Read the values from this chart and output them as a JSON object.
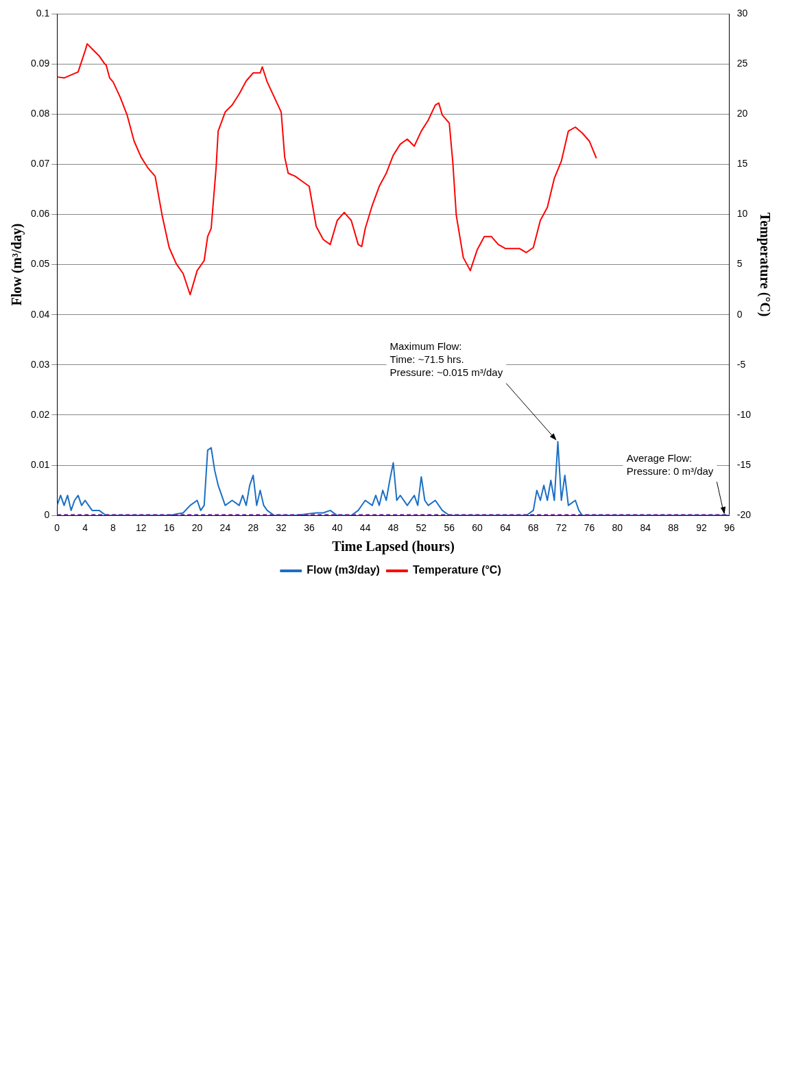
{
  "chart_data": {
    "type": "line",
    "xlabel": "Time Lapsed (hours)",
    "ylabel": "Flow (m³/day)",
    "y2label": "Temperature (°C)",
    "xlim": [
      0,
      96
    ],
    "xticks": [
      0,
      4,
      8,
      12,
      16,
      20,
      24,
      28,
      32,
      36,
      40,
      44,
      48,
      52,
      56,
      60,
      64,
      68,
      72,
      76,
      80,
      84,
      88,
      92,
      96
    ],
    "ylim": [
      0,
      0.1
    ],
    "yticks": [
      0,
      0.01,
      0.02,
      0.03,
      0.04,
      0.05,
      0.06,
      0.07,
      0.08,
      0.09,
      0.1
    ],
    "y2lim": [
      -20,
      30
    ],
    "y2ticks": [
      -20,
      -15,
      -10,
      -5,
      0,
      5,
      10,
      15,
      20,
      25,
      30
    ],
    "grid": "y",
    "legend": "bottom",
    "series": [
      {
        "name": "Flow (m3/day)",
        "axis": "y",
        "color": "#1a6fc4",
        "x": [
          0,
          0.5,
          1,
          1.5,
          2,
          2.5,
          3,
          3.5,
          4,
          4.5,
          5,
          6,
          7,
          8,
          10,
          12,
          14,
          16,
          18,
          19,
          20,
          20.5,
          21,
          21.5,
          22,
          22.5,
          23,
          23.5,
          24,
          25,
          26,
          26.5,
          27,
          27.5,
          28,
          28.5,
          29,
          29.5,
          30,
          31,
          34,
          37,
          38,
          39,
          40,
          42,
          43,
          44,
          45,
          45.5,
          46,
          46.5,
          47,
          47.5,
          48,
          48.5,
          49,
          50,
          51,
          51.5,
          52,
          52.5,
          53,
          54,
          55,
          56,
          60,
          64,
          67,
          68,
          68.5,
          69,
          69.5,
          70,
          70.5,
          71,
          71.5,
          72,
          72.5,
          73,
          74,
          74.5,
          75,
          80,
          88,
          96
        ],
        "values": [
          0.002,
          0.004,
          0.002,
          0.004,
          0.001,
          0.003,
          0.004,
          0.002,
          0.003,
          0.002,
          0.001,
          0.001,
          0,
          0,
          0,
          0,
          0,
          0,
          0.0005,
          0.002,
          0.003,
          0.001,
          0.002,
          0.013,
          0.0135,
          0.009,
          0.006,
          0.004,
          0.002,
          0.003,
          0.002,
          0.004,
          0.002,
          0.006,
          0.008,
          0.002,
          0.005,
          0.002,
          0.001,
          0,
          0,
          0.0005,
          0.0005,
          0.001,
          0,
          0,
          0.001,
          0.003,
          0.002,
          0.004,
          0.002,
          0.005,
          0.003,
          0.007,
          0.0105,
          0.003,
          0.004,
          0.002,
          0.004,
          0.002,
          0.0077,
          0.003,
          0.002,
          0.003,
          0.001,
          0,
          0,
          0,
          0,
          0.001,
          0.005,
          0.003,
          0.006,
          0.003,
          0.007,
          0.003,
          0.0147,
          0.003,
          0.008,
          0.002,
          0.003,
          0.001,
          0,
          0,
          0,
          0
        ]
      },
      {
        "name": "Temperature (°C)",
        "axis": "y2",
        "color": "#ff0000",
        "x": [
          0,
          1,
          3,
          4,
          4.3,
          5,
          6,
          6.8,
          7,
          7.5,
          8,
          9,
          10,
          11,
          12,
          13,
          14,
          15,
          16,
          17,
          18,
          19,
          20,
          21,
          21.5,
          22,
          22.7,
          23,
          24,
          25,
          26,
          27,
          28,
          29,
          29.3,
          30,
          31,
          32,
          32.5,
          33,
          34,
          35,
          36,
          37,
          38,
          39,
          40,
          41,
          42,
          43,
          43.5,
          44,
          45,
          46,
          47,
          48,
          49,
          50,
          51,
          52,
          53,
          54,
          54.5,
          55,
          56,
          56.5,
          57,
          58,
          59,
          60,
          61,
          62,
          63,
          64,
          65,
          66,
          67,
          68,
          69,
          70,
          71,
          72,
          73,
          74,
          75,
          76,
          77
        ],
        "values": [
          23.7,
          23.6,
          24.2,
          26.3,
          27.0,
          26.5,
          25.8,
          25.0,
          24.9,
          23.6,
          23.2,
          21.7,
          19.9,
          17.3,
          15.7,
          14.6,
          13.8,
          9.9,
          6.7,
          5.1,
          4.1,
          2.0,
          4.4,
          5.4,
          7.8,
          8.6,
          14.6,
          18.3,
          20.2,
          20.9,
          22.0,
          23.3,
          24.1,
          24.1,
          24.7,
          23.2,
          21.7,
          20.2,
          15.7,
          14.1,
          13.8,
          13.3,
          12.8,
          8.8,
          7.5,
          7.0,
          9.4,
          10.2,
          9.4,
          7.0,
          6.8,
          8.6,
          10.9,
          12.8,
          14.1,
          15.9,
          17.0,
          17.5,
          16.8,
          18.3,
          19.4,
          20.9,
          21.1,
          19.9,
          19.1,
          15.2,
          9.9,
          5.7,
          4.4,
          6.5,
          7.8,
          7.8,
          7.0,
          6.6,
          6.6,
          6.6,
          6.2,
          6.7,
          9.4,
          10.7,
          13.6,
          15.3,
          18.3,
          18.7,
          18.1,
          17.3,
          15.6
        ]
      }
    ],
    "ref_lines": [
      {
        "axis": "y",
        "value": 0,
        "color": "#7030a0",
        "line_style": "dashed"
      }
    ],
    "annotations": [
      {
        "text": "Maximum Flow:\nTime: ~71.5 hrs.\nPressure: ~0.015 m³/day",
        "x": 71.5,
        "y": 0.0147
      },
      {
        "text": "Average Flow:\nPressure: 0 m³/day",
        "x": 95.5,
        "y": 0
      }
    ]
  }
}
